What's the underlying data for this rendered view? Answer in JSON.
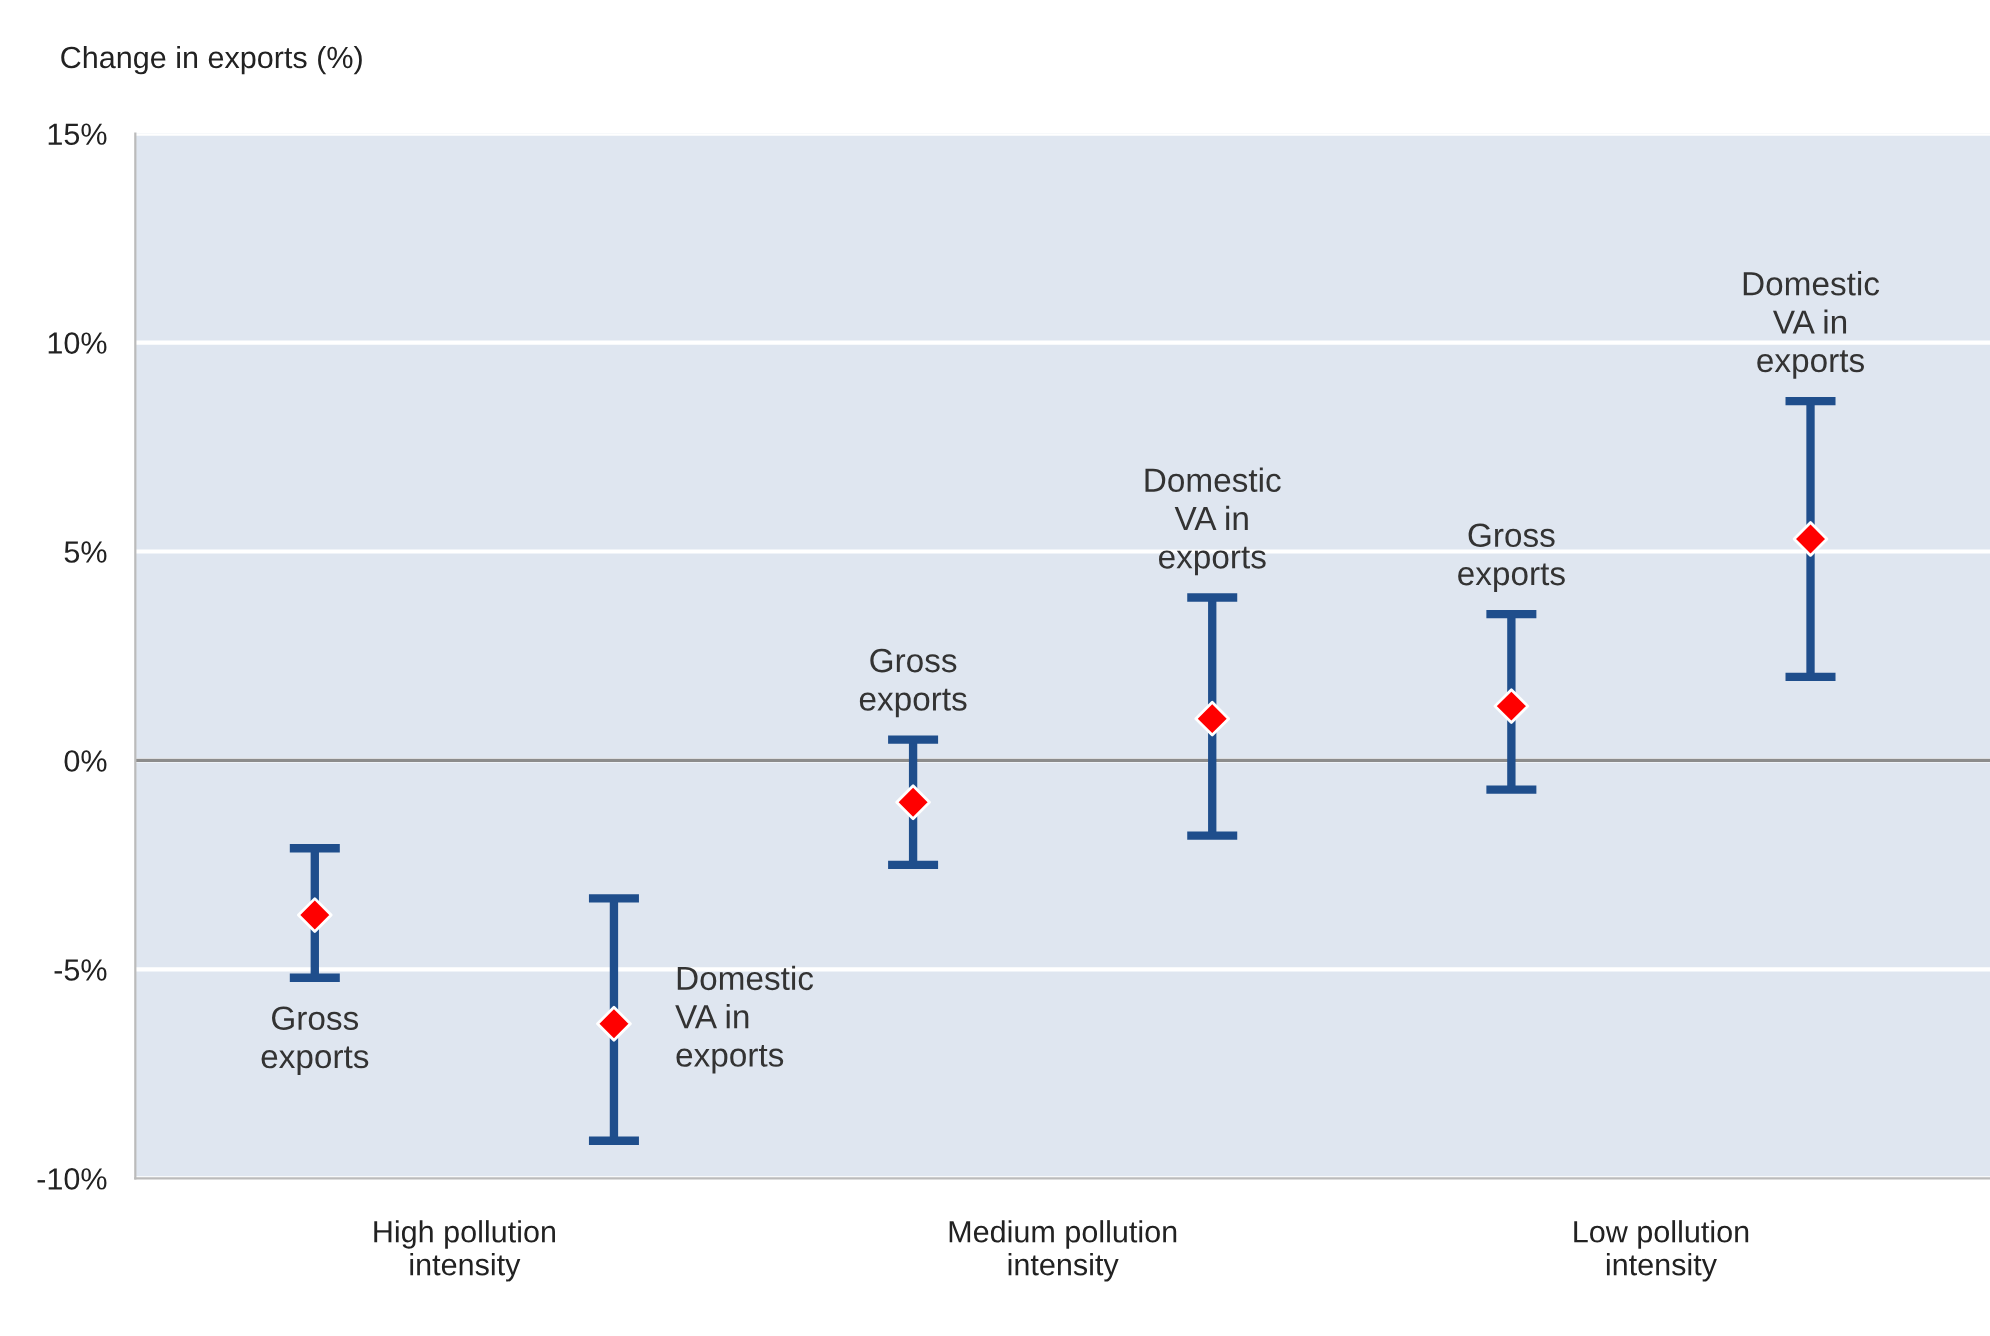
{
  "chart_data": {
    "type": "scatter",
    "ylabel": "Change in exports (%)",
    "categories": [
      null,
      null,
      null,
      null,
      null,
      null
    ],
    "series": [
      {
        "color": "#ff0000",
        "values": [
          -3.7,
          -6.3,
          -1.0,
          1.0,
          1.3,
          5.3
        ],
        "errors": [
          [
            -5.2,
            -2.1
          ],
          [
            -9.1,
            -3.3
          ],
          [
            -2.5,
            0.5
          ],
          [
            -1.8,
            3.9
          ],
          [
            -0.7,
            3.5
          ],
          [
            2.0,
            8.6
          ]
        ]
      }
    ],
    "marker": "diamond",
    "ylim": [
      -10,
      15
    ],
    "yticks": [
      {
        "value": -10,
        "label": "-10%"
      },
      {
        "value": -5,
        "label": "-5%"
      },
      {
        "value": 0,
        "label": "0%"
      },
      {
        "value": 5,
        "label": "5%"
      },
      {
        "value": 10,
        "label": "10%"
      },
      {
        "value": 15,
        "label": "15%"
      }
    ],
    "grid": "y",
    "ref_lines": [
      {
        "axis": "y",
        "value": 0,
        "color": "#8c8c8c"
      }
    ],
    "annotations": [
      "Gross\nexports",
      "Domestic\nVA in\nexports",
      "Gross\nexports",
      "Domestic\nVA in\nexports",
      "Gross\nexports",
      "Domestic\nVA in\nexports",
      "High pollution\nintensity",
      "Medium pollution\nintensity",
      "Low pollution\nintensity"
    ]
  }
}
